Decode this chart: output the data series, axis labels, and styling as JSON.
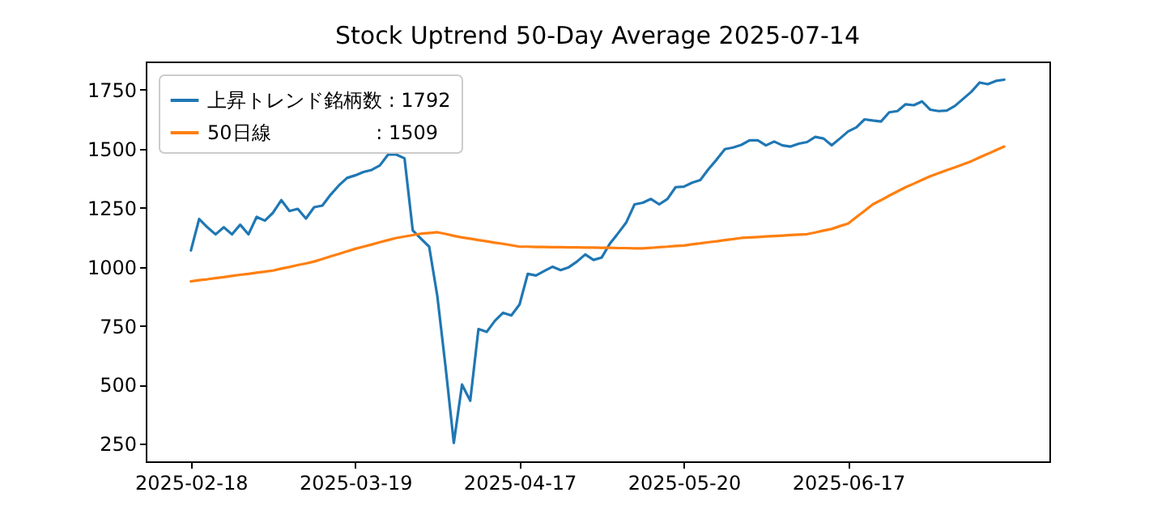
{
  "chart_data": {
    "type": "line",
    "title": "Stock Uptrend 50-Day Average 2025-07-14",
    "categories": [
      "2025-02-18",
      null,
      null,
      null,
      null,
      null,
      null,
      null,
      null,
      null,
      null,
      null,
      null,
      null,
      null,
      null,
      null,
      null,
      null,
      null,
      "2025-03-19",
      null,
      null,
      null,
      null,
      null,
      null,
      null,
      null,
      null,
      null,
      null,
      null,
      null,
      null,
      null,
      null,
      null,
      null,
      null,
      "2025-04-17",
      null,
      null,
      null,
      null,
      null,
      null,
      null,
      null,
      null,
      null,
      null,
      null,
      null,
      null,
      null,
      null,
      null,
      null,
      null,
      "2025-05-20",
      null,
      null,
      null,
      null,
      null,
      null,
      null,
      null,
      null,
      null,
      null,
      null,
      null,
      null,
      null,
      null,
      null,
      null,
      null,
      "2025-06-17",
      null,
      null,
      null,
      null,
      null,
      null,
      null,
      null,
      null,
      null,
      null,
      null,
      null,
      null,
      null,
      null,
      null,
      null,
      null
    ],
    "ylim": [
      176,
      1869
    ],
    "yticks": [
      250,
      500,
      750,
      1000,
      1250,
      1500,
      1750
    ],
    "legend": "top left",
    "grid": false,
    "line_style": "solid",
    "marker": "none",
    "series": [
      {
        "name": "上昇トレンド銘柄数 : 1792",
        "color": "#1f77b4",
        "values": [
          1069,
          1202,
          1167,
          1137,
          1167,
          1137,
          1178,
          1137,
          1211,
          1195,
          1229,
          1282,
          1236,
          1245,
          1204,
          1252,
          1259,
          1305,
          1344,
          1376,
          1387,
          1401,
          1410,
          1429,
          1475,
          1475,
          1459,
          1154,
          1119,
          1085,
          874,
          575,
          254,
          501,
          433,
          736,
          724,
          771,
          805,
          794,
          840,
          970,
          963,
          982,
          1000,
          986,
          998,
          1022,
          1052,
          1029,
          1039,
          1098,
          1142,
          1188,
          1264,
          1271,
          1287,
          1264,
          1287,
          1337,
          1339,
          1356,
          1367,
          1413,
          1454,
          1498,
          1505,
          1516,
          1535,
          1535,
          1514,
          1530,
          1514,
          1509,
          1521,
          1528,
          1550,
          1543,
          1514,
          1543,
          1573,
          1590,
          1624,
          1619,
          1615,
          1654,
          1659,
          1688,
          1684,
          1700,
          1665,
          1659,
          1661,
          1681,
          1711,
          1741,
          1780,
          1773,
          1787,
          1792
        ]
      },
      {
        "name": "50日線                 : 1509",
        "color": "#ff7f0e",
        "values": [
          938,
          943,
          947,
          952,
          956,
          961,
          966,
          970,
          975,
          979,
          984,
          992,
          999,
          1007,
          1014,
          1022,
          1033,
          1044,
          1054,
          1065,
          1076,
          1085,
          1094,
          1104,
          1113,
          1122,
          1128,
          1134,
          1140,
          1143,
          1146,
          1139,
          1131,
          1124,
          1119,
          1113,
          1108,
          1102,
          1097,
          1091,
          1085,
          1085,
          1084,
          1084,
          1083,
          1083,
          1082,
          1082,
          1081,
          1081,
          1080,
          1080,
          1079,
          1079,
          1078,
          1078,
          1080,
          1083,
          1085,
          1088,
          1090,
          1095,
          1099,
          1104,
          1108,
          1113,
          1117,
          1122,
          1124,
          1126,
          1128,
          1130,
          1132,
          1134,
          1136,
          1138,
          1145,
          1153,
          1160,
          1172,
          1183,
          1210,
          1237,
          1264,
          1282,
          1301,
          1319,
          1337,
          1352,
          1368,
          1383,
          1396,
          1409,
          1421,
          1434,
          1447,
          1463,
          1478,
          1494,
          1509
        ]
      }
    ]
  }
}
